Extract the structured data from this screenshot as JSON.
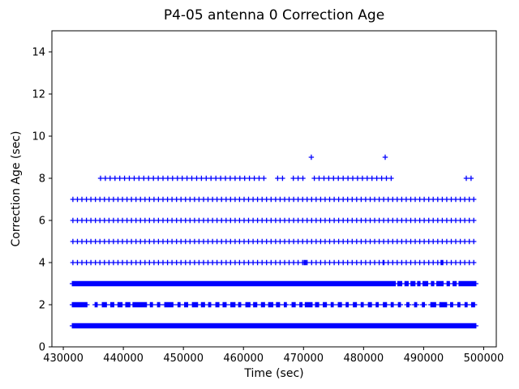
{
  "chart_data": {
    "type": "scatter",
    "title": "P4-05 antenna 0 Correction Age",
    "xlabel": "Time (sec)",
    "ylabel": "Correction Age (sec)",
    "marker": "+",
    "marker_color": "#0000ff",
    "grid": false,
    "legend": "none",
    "xlim": [
      428100,
      502100
    ],
    "ylim": [
      0,
      15
    ],
    "xticks": [
      430000,
      440000,
      450000,
      460000,
      470000,
      480000,
      490000,
      500000
    ],
    "yticks": [
      0,
      2,
      4,
      6,
      8,
      10,
      12,
      14
    ],
    "bands": [
      {
        "y": 1,
        "segments": [
          [
            431500,
            498700,
            50
          ]
        ],
        "points": []
      },
      {
        "y": 2,
        "segments": [
          [
            431500,
            433900,
            90
          ],
          [
            435300,
            435700,
            170
          ],
          [
            436500,
            437100,
            170
          ],
          [
            437900,
            438400,
            170
          ],
          [
            439100,
            439700,
            170
          ],
          [
            440400,
            441100,
            170
          ],
          [
            441600,
            443900,
            140
          ],
          [
            444500,
            444900,
            170
          ],
          [
            445700,
            446100,
            170
          ],
          [
            446900,
            448300,
            150
          ],
          [
            449100,
            449500,
            170
          ],
          [
            450200,
            450700,
            170
          ],
          [
            451500,
            452300,
            170
          ],
          [
            453000,
            453500,
            170
          ],
          [
            454200,
            454600,
            170
          ],
          [
            455400,
            455900,
            170
          ],
          [
            456600,
            457100,
            170
          ],
          [
            457900,
            458500,
            170
          ],
          [
            459200,
            459600,
            170
          ],
          [
            460400,
            461000,
            170
          ],
          [
            461700,
            462200,
            170
          ],
          [
            463000,
            463500,
            170
          ],
          [
            464200,
            464800,
            170
          ],
          [
            465500,
            466000,
            170
          ],
          [
            466800,
            467200,
            170
          ],
          [
            468100,
            468600,
            170
          ],
          [
            469400,
            469800,
            170
          ],
          [
            470300,
            471400,
            140
          ],
          [
            472000,
            472500,
            170
          ],
          [
            473300,
            473800,
            170
          ],
          [
            474600,
            475000,
            170
          ],
          [
            475800,
            476300,
            170
          ],
          [
            477100,
            477500,
            170
          ],
          [
            478300,
            478800,
            170
          ],
          [
            479600,
            480000,
            170
          ],
          [
            480800,
            481300,
            170
          ],
          [
            482100,
            482500,
            170
          ],
          [
            483300,
            483800,
            170
          ],
          [
            484600,
            485000,
            170
          ],
          [
            485800,
            486200,
            170
          ],
          [
            487200,
            487600,
            170
          ],
          [
            488500,
            488900,
            170
          ],
          [
            489800,
            490200,
            170
          ],
          [
            491200,
            492000,
            160
          ],
          [
            492700,
            493800,
            160
          ],
          [
            494500,
            494900,
            170
          ],
          [
            495700,
            496100,
            170
          ],
          [
            496900,
            497300,
            170
          ],
          [
            498000,
            498500,
            160
          ]
        ],
        "points": []
      },
      {
        "y": 3,
        "segments": [
          [
            431500,
            485300,
            55
          ],
          [
            485700,
            486400,
            130
          ],
          [
            486900,
            487400,
            130
          ],
          [
            487900,
            488500,
            130
          ],
          [
            489000,
            489400,
            130
          ],
          [
            489900,
            490700,
            130
          ],
          [
            491300,
            491700,
            130
          ],
          [
            492200,
            493300,
            130
          ],
          [
            493900,
            494300,
            130
          ],
          [
            494900,
            495400,
            130
          ],
          [
            495900,
            498700,
            70
          ]
        ],
        "points": []
      },
      {
        "y": 4,
        "segments": [
          [
            431600,
            498400,
            750
          ]
        ],
        "points": [
          470100,
          470250,
          470400,
          483250,
          483400,
          492900,
          493050,
          493200
        ]
      },
      {
        "y": 5,
        "segments": [
          [
            431600,
            498300,
            750
          ]
        ],
        "points": []
      },
      {
        "y": 6,
        "segments": [
          [
            431600,
            498300,
            750
          ]
        ],
        "points": []
      },
      {
        "y": 7,
        "segments": [
          [
            431600,
            498500,
            750
          ]
        ],
        "points": []
      },
      {
        "y": 8,
        "segments": [
          [
            436200,
            463000,
            800
          ],
          [
            465700,
            466500,
            800
          ],
          [
            468300,
            469900,
            800
          ],
          [
            471800,
            484600,
            800
          ],
          [
            497100,
            497900,
            800
          ]
        ],
        "points": []
      },
      {
        "y": 9,
        "segments": [],
        "points": [
          471300,
          483600
        ]
      }
    ]
  }
}
